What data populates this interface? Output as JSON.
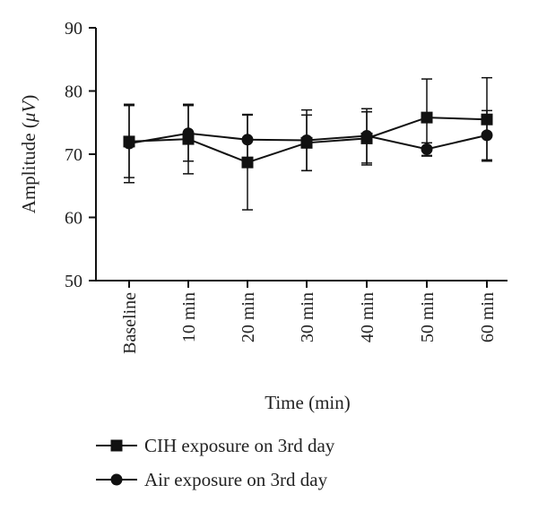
{
  "chart_data": {
    "type": "line",
    "xlabel": "Time (min)",
    "ylabel_main": "Amplitude (",
    "ylabel_unit": "μV",
    "ylabel_end": ")",
    "categories": [
      "Baseline",
      "10 min",
      "20 min",
      "30 min",
      "40 min",
      "50 min",
      "60 min"
    ],
    "ylim": [
      50,
      90
    ],
    "yticks": [
      50,
      60,
      70,
      80,
      90
    ],
    "grid": false,
    "legend_position": "bottom-left",
    "series": [
      {
        "name": "CIH exposure on 3rd day",
        "marker": "square",
        "values": [
          72.0,
          72.4,
          68.7,
          71.8,
          72.5,
          75.8,
          75.5
        ],
        "errors": [
          5.7,
          5.5,
          7.5,
          4.4,
          4.2,
          6.1,
          6.6
        ]
      },
      {
        "name": "Air exposure on 3rd day",
        "marker": "circle",
        "values": [
          71.7,
          73.3,
          72.3,
          72.2,
          72.9,
          70.8,
          73.0
        ],
        "errors": [
          6.2,
          4.4,
          4.0,
          4.8,
          4.3,
          1.0,
          3.9
        ]
      }
    ]
  }
}
